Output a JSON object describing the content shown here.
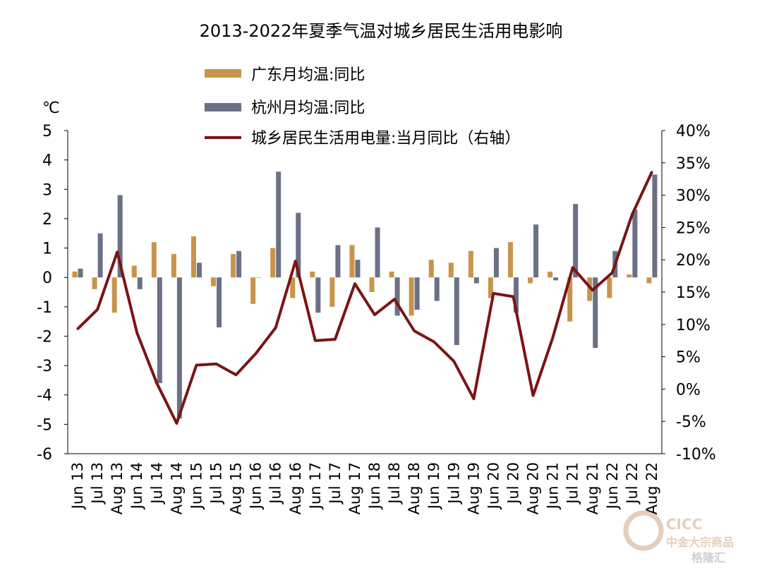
{
  "chart_data": {
    "type": "bar",
    "title": "2013-2022年夏季气温对城乡居民生活用电影响",
    "left_axis_unit": "℃",
    "categories": [
      "Jun 13",
      "Jul 13",
      "Aug 13",
      "Jun 14",
      "Jul 14",
      "Aug 14",
      "Jun 15",
      "Jul 15",
      "Aug 15",
      "Jun 16",
      "Jul 16",
      "Aug 16",
      "Jun 17",
      "Jul 17",
      "Aug 17",
      "Jun 18",
      "Jul 18",
      "Aug 18",
      "Jun 19",
      "Jul 19",
      "Aug 19",
      "Jun 20",
      "Jul 20",
      "Aug 20",
      "Jun 21",
      "Jul 21",
      "Aug 21",
      "Jun 22",
      "Jul 22",
      "Aug 22"
    ],
    "left_axis": {
      "min": -6,
      "max": 5,
      "ticks": [
        "5",
        "4",
        "3",
        "2",
        "1",
        "0",
        "-1",
        "-2",
        "-3",
        "-4",
        "-5",
        "-6"
      ]
    },
    "right_axis": {
      "min": -10,
      "max": 40,
      "ticks": [
        "40%",
        "35%",
        "30%",
        "25%",
        "20%",
        "15%",
        "10%",
        "5%",
        "0%",
        "-5%",
        "-10%"
      ]
    },
    "series": [
      {
        "name": "广东月均温:同比",
        "kind": "bar",
        "axis": "left",
        "color": "#C8944B",
        "values": [
          0.2,
          -0.4,
          -1.2,
          0.4,
          1.2,
          0.8,
          1.4,
          -0.3,
          0.8,
          -0.9,
          1.0,
          -0.7,
          0.2,
          -1.0,
          1.1,
          -0.5,
          0.2,
          -1.3,
          0.6,
          0.5,
          0.9,
          -0.7,
          1.2,
          -0.2,
          0.2,
          -1.5,
          -0.8,
          -0.7,
          0.1,
          -0.2
        ]
      },
      {
        "name": "杭州月均温:同比",
        "kind": "bar",
        "axis": "left",
        "color": "#6B7085",
        "values": [
          0.3,
          1.5,
          2.8,
          -0.4,
          -3.6,
          -4.8,
          0.5,
          -1.7,
          0.9,
          0.0,
          3.6,
          2.2,
          -1.2,
          1.1,
          0.6,
          1.7,
          -1.3,
          -1.1,
          -0.8,
          -2.3,
          -0.2,
          1.0,
          -1.2,
          1.8,
          -0.1,
          2.5,
          -2.4,
          0.9,
          2.3,
          3.5
        ]
      },
      {
        "name": "城乡居民生活用电量:当月同比（右轴）",
        "kind": "line",
        "axis": "right",
        "color": "#7A1416",
        "values": [
          9.3,
          12.3,
          21.2,
          8.7,
          0.9,
          -5.3,
          3.7,
          3.9,
          2.2,
          5.5,
          9.5,
          19.8,
          7.5,
          7.7,
          16.3,
          11.5,
          13.9,
          9.0,
          7.3,
          4.3,
          -1.5,
          14.8,
          14.3,
          -1.0,
          8.0,
          18.8,
          15.3,
          18.0,
          27.0,
          33.6
        ]
      }
    ],
    "legend_position": "top-center",
    "grid": false
  },
  "watermark": {
    "brand_en": "CICC",
    "brand_cn": "中金大宗商品",
    "source_tag": "格隆汇"
  }
}
